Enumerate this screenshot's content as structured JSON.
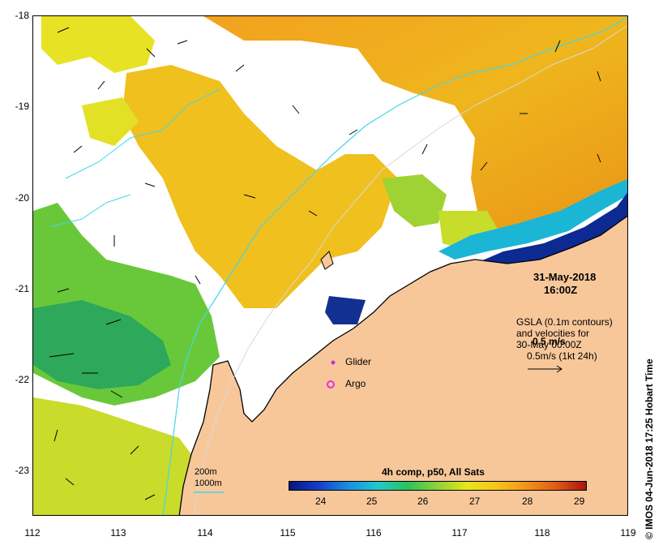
{
  "map": {
    "timestamp_date": "31-May-2018",
    "timestamp_time": "16:00Z",
    "gsla_line1": "GSLA (0.1m contours)",
    "gsla_line2": "and velocities for",
    "gsla_line3": "30-May 00:00Z",
    "gsla_line4": "0.5m/s (1kt 24h)",
    "overlay_label": "0.5 m/s",
    "legend_glider": "Glider",
    "legend_argo": "Argo",
    "contour_200": "200m",
    "contour_1000": "1000m",
    "colorbar_title": "4h comp, p50, All Sats",
    "credit": "© IMOS 04-Jun-2018 17:25 Hobart Time",
    "y_ticks": [
      "-18",
      "-19",
      "-20",
      "-21",
      "-22",
      "-23"
    ],
    "x_ticks": [
      "112",
      "113",
      "114",
      "115",
      "116",
      "117",
      "118",
      "119"
    ],
    "colorbar_ticks": [
      "24",
      "25",
      "26",
      "27",
      "28",
      "29"
    ],
    "colors": {
      "land": "#f7c79a",
      "coastline": "#000000",
      "contour": "#44d7e8",
      "glider": "#c02cd6",
      "argo": "#e62ee0"
    }
  }
}
